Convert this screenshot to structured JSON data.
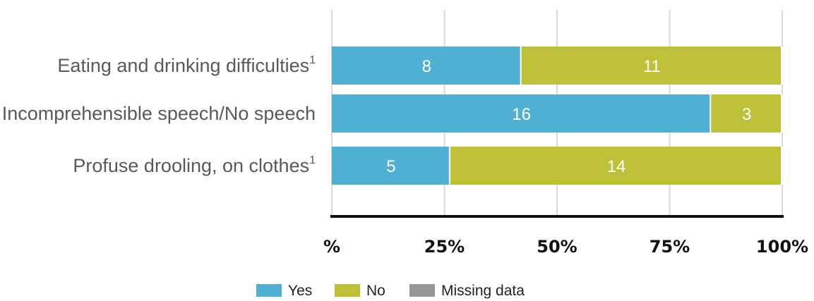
{
  "chart_data": {
    "type": "bar",
    "orientation": "horizontal",
    "stacked": "percent",
    "categories": [
      {
        "label": "Eating and drinking difficulties",
        "sup": "1"
      },
      {
        "label": "Incomprehensible speech/No speech",
        "sup": ""
      },
      {
        "label": "Profuse drooling, on clothes",
        "sup": "1"
      }
    ],
    "series": [
      {
        "name": "Yes",
        "color": "#4fb0d2",
        "values": [
          8,
          16,
          5
        ]
      },
      {
        "name": "No",
        "color": "#bcc137",
        "values": [
          11,
          3,
          14
        ]
      },
      {
        "name": "Missing data",
        "color": "#979797",
        "values": [
          0,
          0,
          0
        ]
      }
    ],
    "x_ticks": [
      "%",
      "25%",
      "50%",
      "75%",
      "100%"
    ],
    "xlim": [
      0,
      100
    ],
    "grid": true,
    "legend_position": "bottom"
  }
}
